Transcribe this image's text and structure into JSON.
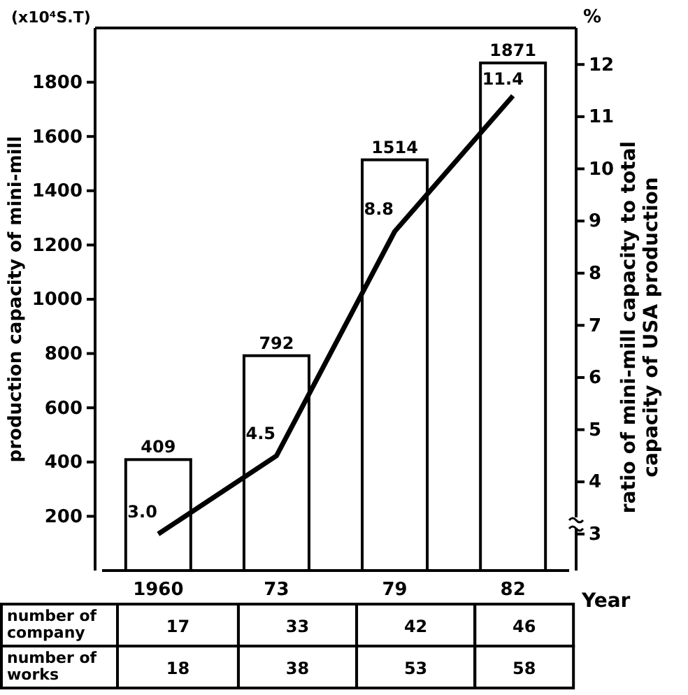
{
  "chart_data": {
    "type": "bar",
    "xlabel": "Year",
    "ylabel": "production capacity of mini-mill",
    "y2label": "ratio of mini-mill capacity to total\ncapacity of USA production",
    "categories": [
      "1960",
      "73",
      "79",
      "82"
    ],
    "series": [
      {
        "color": "#ffffff",
        "values": [
          409,
          792,
          1514,
          1871
        ],
        "value_labels": [
          "409",
          "792",
          "1514",
          "1871"
        ]
      },
      {
        "type": "line",
        "axis": "y2",
        "color": "#000000",
        "values": [
          3.0,
          4.5,
          8.8,
          11.4
        ],
        "value_labels": [
          "3.0",
          "4.5",
          "8.8",
          "11.4"
        ]
      }
    ],
    "ylim": [
      0,
      2000
    ],
    "yticks": [
      200,
      400,
      600,
      800,
      1000,
      1200,
      1400,
      1600,
      1800
    ],
    "y2lim": [
      2.3,
      12.7
    ],
    "y2ticks": [
      3,
      4,
      5,
      6,
      7,
      8,
      9,
      10,
      11,
      12
    ],
    "marker": "none",
    "grid": false,
    "annotations": [
      "(x10⁴S.T)",
      "%",
      "number of\ncompany",
      "17",
      "33",
      "42",
      "46",
      "number of\nworks",
      "18",
      "38",
      "53",
      "58"
    ]
  }
}
